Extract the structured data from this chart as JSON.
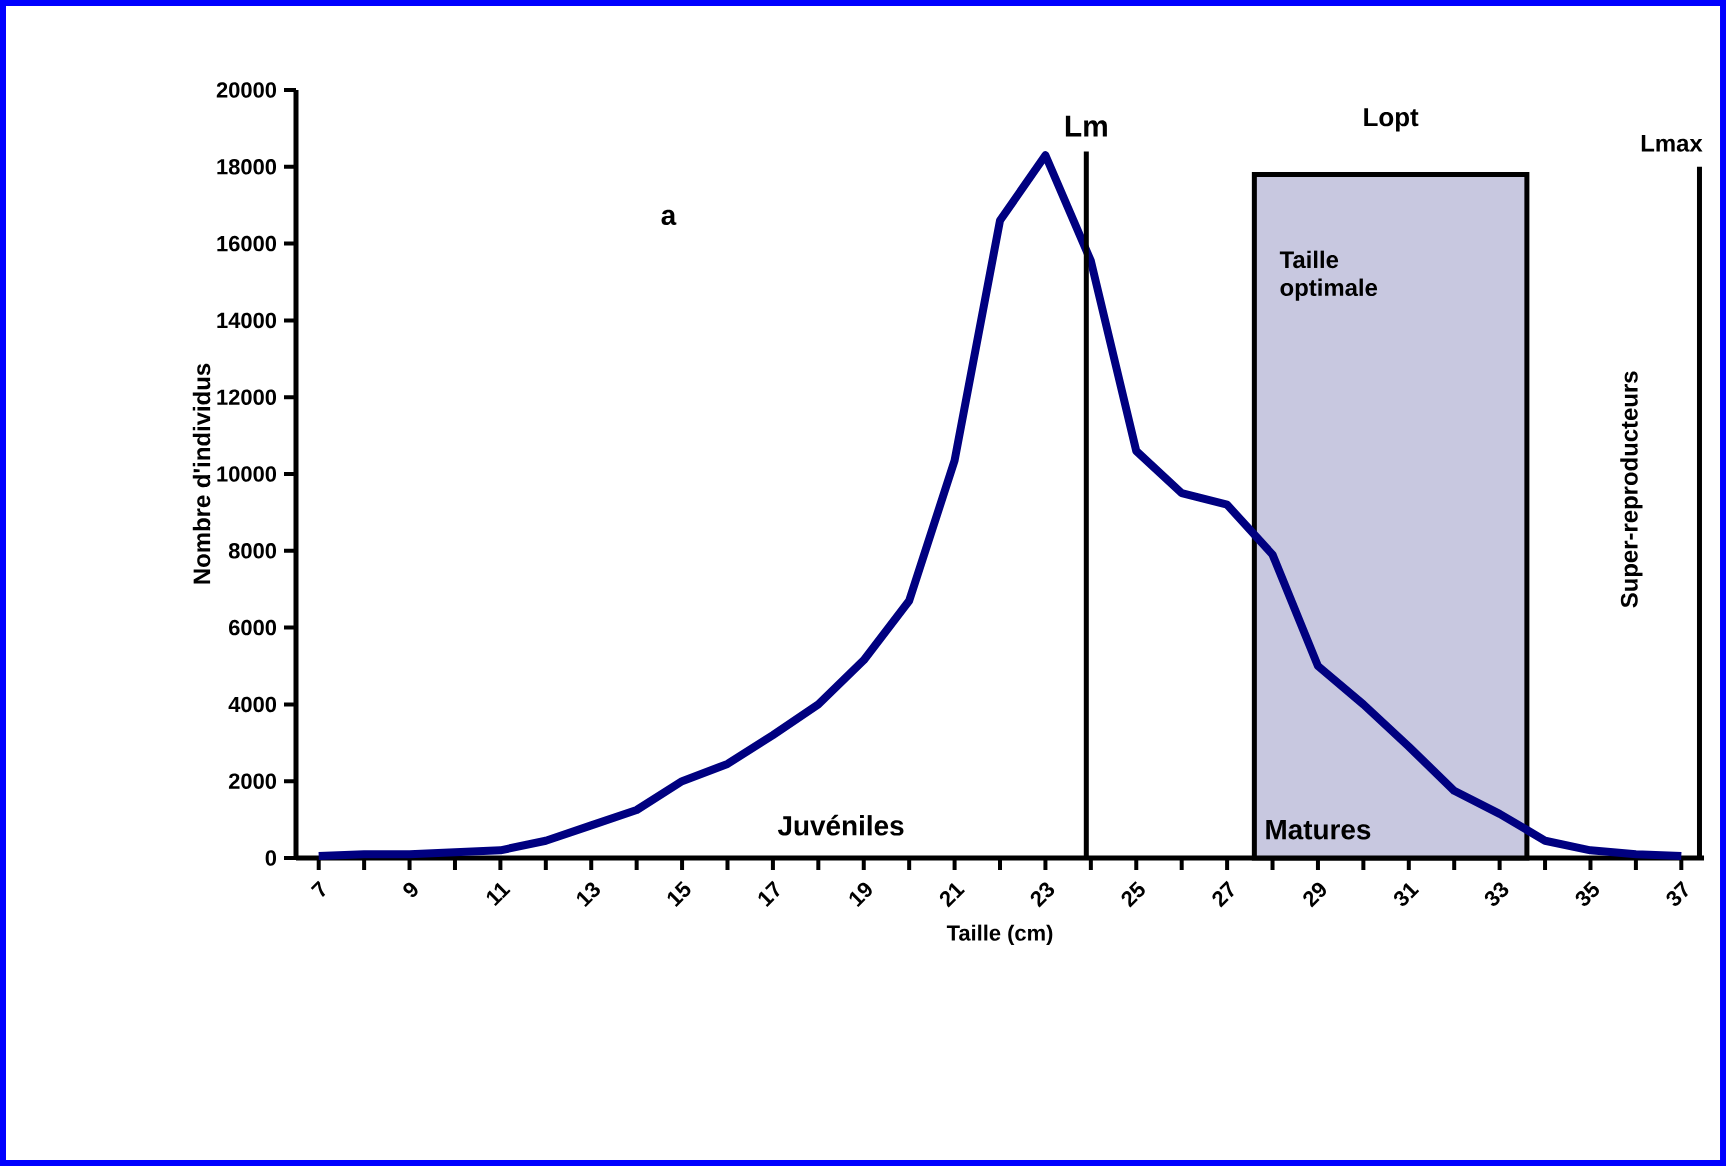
{
  "chart_data": {
    "type": "line",
    "xlabel": "Taille (cm)",
    "ylabel": "Nombre d'individus",
    "x": [
      7,
      8,
      9,
      10,
      11,
      12,
      13,
      14,
      15,
      16,
      17,
      18,
      19,
      20,
      21,
      22,
      23,
      24,
      25,
      26,
      27,
      28,
      29,
      30,
      31,
      32,
      33,
      34,
      35,
      36,
      37
    ],
    "series": [
      {
        "color": "#000080",
        "values": [
          50,
          100,
          100,
          150,
          200,
          450,
          850,
          1250,
          2000,
          2450,
          3200,
          4000,
          5150,
          6700,
          10350,
          16600,
          18300,
          15550,
          10600,
          9500,
          9200,
          7900,
          5000,
          4000,
          2900,
          1750,
          1150,
          450,
          200,
          100,
          50
        ]
      }
    ],
    "xlim": [
      6.5,
      37.5
    ],
    "xticks": [
      7,
      9,
      11,
      13,
      15,
      17,
      19,
      21,
      23,
      25,
      27,
      29,
      31,
      33,
      35,
      37
    ],
    "ylim": [
      0,
      20000
    ],
    "yticks": [
      0,
      2000,
      4000,
      6000,
      8000,
      10000,
      12000,
      14000,
      16000,
      18000,
      20000
    ],
    "ref_lines": [
      {
        "axis": "x",
        "value": 23.9,
        "label": "Lm",
        "color": "#000000"
      },
      {
        "axis": "x",
        "value": 37.4,
        "label": "Lmax",
        "color": "#000000"
      }
    ],
    "bands": [
      {
        "axis": "x",
        "from": 27.6,
        "to": 33.6,
        "label": "Lopt",
        "color": "#c8c8e0"
      }
    ],
    "annotations": [
      "a",
      "Juvéniles",
      "Matures",
      "Taille optimale",
      "Super-reproducteurs"
    ]
  }
}
